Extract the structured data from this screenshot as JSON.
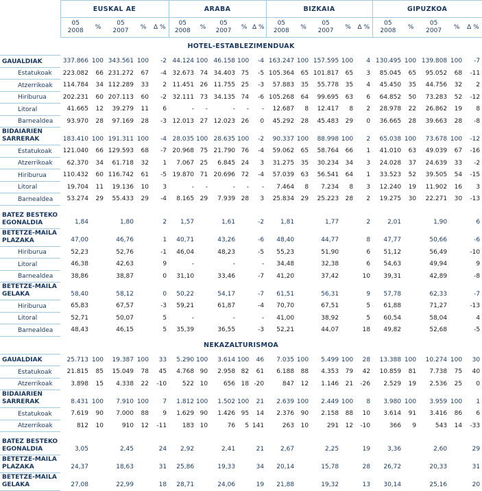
{
  "colors": {
    "text_navy": "#17375E",
    "text_black": "#1A1A1A",
    "border_blue": "#A3C7DF",
    "background": "#FFFFFF"
  },
  "table": {
    "groups": [
      "EUSKAL AE",
      "ARABA",
      "BIZKAIA",
      "GIPUZKOA"
    ],
    "sub_cols": [
      "05\n2008",
      "%",
      "05\n2007",
      "%",
      "Δ %"
    ],
    "sections": [
      {
        "title": "HOTEL-ESTABLEZIMENDUAK",
        "rows": [
          {
            "label": "GAUALDIAK",
            "style": "cat",
            "cells": [
              "337.866",
              "100",
              "343.561",
              "100",
              "-2",
              "44.124",
              "100",
              "46.158",
              "100",
              "-4",
              "163.247",
              "100",
              "157.595",
              "100",
              "4",
              "130.495",
              "100",
              "139.808",
              "100",
              "-7"
            ]
          },
          {
            "label": "Estatukoak",
            "style": "sub",
            "cells": [
              "223.082",
              "66",
              "231.272",
              "67",
              "-4",
              "32.673",
              "74",
              "34.403",
              "75",
              "-5",
              "105.364",
              "65",
              "101.817",
              "65",
              "3",
              "85.045",
              "65",
              "95.052",
              "68",
              "-11"
            ]
          },
          {
            "label": "Atzerrikoak",
            "style": "sub",
            "cells": [
              "114.784",
              "34",
              "112.289",
              "33",
              "2",
              "11.451",
              "26",
              "11.755",
              "25",
              "-3",
              "57.883",
              "35",
              "55.778",
              "35",
              "4",
              "45.450",
              "35",
              "44.756",
              "32",
              "2"
            ]
          },
          {
            "label": "Hiriburua",
            "style": "sub",
            "cells": [
              "202.231",
              "60",
              "207.113",
              "60",
              "-2",
              "32.111",
              "73",
              "34.135",
              "74",
              "-6",
              "105.268",
              "64",
              "99.695",
              "63",
              "6",
              "64.852",
              "50",
              "73.283",
              "52",
              "-12"
            ]
          },
          {
            "label": "Litoral",
            "style": "sub",
            "cells": [
              "41.665",
              "12",
              "39.279",
              "11",
              "6",
              "-",
              "-",
              "-",
              "-",
              "-",
              "12.687",
              "8",
              "12.417",
              "8",
              "2",
              "28.978",
              "22",
              "26.862",
              "19",
              "8"
            ]
          },
          {
            "label": "Barnealdea",
            "style": "sub",
            "cells": [
              "93.970",
              "28",
              "97.169",
              "28",
              "-3",
              "12.013",
              "27",
              "12.023",
              "26",
              "0",
              "45.292",
              "28",
              "45.483",
              "29",
              "0",
              "36.665",
              "28",
              "39.663",
              "28",
              "-8"
            ]
          },
          {
            "label": "BIDAIARIEN\nSARRERAK",
            "style": "cat",
            "cells": [
              "183.410",
              "100",
              "191.311",
              "100",
              "-4",
              "28.035",
              "100",
              "28.635",
              "100",
              "-2",
              "90.337",
              "100",
              "88.998",
              "100",
              "2",
              "65.038",
              "100",
              "73.678",
              "100",
              "-12"
            ]
          },
          {
            "label": "Estatukoak",
            "style": "sub",
            "cells": [
              "121.040",
              "66",
              "129.593",
              "68",
              "-7",
              "20.968",
              "75",
              "21.790",
              "76",
              "-4",
              "59.062",
              "65",
              "58.764",
              "66",
              "1",
              "41.010",
              "63",
              "49.039",
              "67",
              "-16"
            ]
          },
          {
            "label": "Atzerrikoak",
            "style": "sub",
            "cells": [
              "62.370",
              "34",
              "61.718",
              "32",
              "1",
              "7.067",
              "25",
              "6.845",
              "24",
              "3",
              "31.275",
              "35",
              "30.234",
              "34",
              "3",
              "24.028",
              "37",
              "24.639",
              "33",
              "-2"
            ]
          },
          {
            "label": "Hiriburua",
            "style": "sub",
            "cells": [
              "110.432",
              "60",
              "116.742",
              "61",
              "-5",
              "19.870",
              "71",
              "20.696",
              "72",
              "-4",
              "57.039",
              "63",
              "56.541",
              "64",
              "1",
              "33.523",
              "52",
              "39.505",
              "54",
              "-15"
            ]
          },
          {
            "label": "Litoral",
            "style": "sub",
            "cells": [
              "19.704",
              "11",
              "19.136",
              "10",
              "3",
              "-",
              "-",
              "-",
              "-",
              "-",
              "7.464",
              "8",
              "7.234",
              "8",
              "3",
              "12.240",
              "19",
              "11.902",
              "16",
              "3"
            ]
          },
          {
            "label": "Barnealdea",
            "style": "sub",
            "cells": [
              "53.274",
              "29",
              "55.433",
              "29",
              "-4",
              "8.165",
              "29",
              "7.939",
              "28",
              "3",
              "25.834",
              "29",
              "25.223",
              "28",
              "2",
              "19.275",
              "30",
              "22.271",
              "30",
              "-13"
            ]
          },
          {
            "label": "BATEZ BESTEKO\nEGONALDIA",
            "style": "cat",
            "gap_before": true,
            "cells": [
              "1,84",
              "",
              "1,80",
              "",
              "2",
              "1,57",
              "",
              "1,61",
              "",
              "-2",
              "1,81",
              "",
              "1,77",
              "",
              "2",
              "2,01",
              "",
              "1,90",
              "",
              "6"
            ]
          },
          {
            "label": "BETETZE-MAILA\nPLAZAKA",
            "style": "cat",
            "cells": [
              "47,00",
              "",
              "46,76",
              "",
              "1",
              "40,71",
              "",
              "43,26",
              "",
              "-6",
              "48,40",
              "",
              "44,77",
              "",
              "8",
              "47,77",
              "",
              "50,66",
              "",
              "-6"
            ]
          },
          {
            "label": "Hiriburua",
            "style": "sub",
            "cells": [
              "52,23",
              "",
              "52,76",
              "",
              "-1",
              "46,04",
              "",
              "48,23",
              "",
              "-5",
              "55,23",
              "",
              "51,90",
              "",
              "6",
              "51,12",
              "",
              "56,49",
              "",
              "-10"
            ]
          },
          {
            "label": "Litoral",
            "style": "sub",
            "cells": [
              "46,38",
              "",
              "42,63",
              "",
              "9",
              "-",
              "",
              "-",
              "",
              "-",
              "34,48",
              "",
              "32,38",
              "",
              "6",
              "54,63",
              "",
              "49,94",
              "",
              "9"
            ]
          },
          {
            "label": "Barnealdea",
            "style": "sub",
            "cells": [
              "38,86",
              "",
              "38,87",
              "",
              "0",
              "31,10",
              "",
              "33,46",
              "",
              "-7",
              "41,20",
              "",
              "37,42",
              "",
              "10",
              "39,31",
              "",
              "42,89",
              "",
              "-8"
            ]
          },
          {
            "label": "BETETZE-MAILA\nGELAKA",
            "style": "cat",
            "cells": [
              "58,40",
              "",
              "58,12",
              "",
              "0",
              "50,22",
              "",
              "54,17",
              "",
              "-7",
              "61,51",
              "",
              "56,31",
              "",
              "9",
              "57,78",
              "",
              "62,33",
              "",
              "-7"
            ]
          },
          {
            "label": "Hiriburua",
            "style": "sub",
            "cells": [
              "65,83",
              "",
              "67,57",
              "",
              "-3",
              "59,21",
              "",
              "61,87",
              "",
              "-4",
              "70,70",
              "",
              "67,51",
              "",
              "5",
              "61,88",
              "",
              "71,27",
              "",
              "-13"
            ]
          },
          {
            "label": "Litoral",
            "style": "sub",
            "cells": [
              "52,71",
              "",
              "50,07",
              "",
              "5",
              "-",
              "",
              "-",
              "",
              "-",
              "41,00",
              "",
              "38,92",
              "",
              "5",
              "60,54",
              "",
              "58,04",
              "",
              "4"
            ]
          },
          {
            "label": "Barnealdea",
            "style": "sub",
            "cells": [
              "48,43",
              "",
              "46,15",
              "",
              "5",
              "35,39",
              "",
              "36,55",
              "",
              "-3",
              "52,21",
              "",
              "44,07",
              "",
              "18",
              "49,82",
              "",
              "52,68",
              "",
              "-5"
            ]
          }
        ]
      },
      {
        "title": "NEKAZALTURISMOA",
        "rows": [
          {
            "label": "GAUALDIAK",
            "style": "cat",
            "cells": [
              "25.713",
              "100",
              "19.387",
              "100",
              "33",
              "5.290",
              "100",
              "3.614",
              "100",
              "46",
              "7.035",
              "100",
              "5.499",
              "100",
              "28",
              "13.388",
              "100",
              "10.274",
              "100",
              "30"
            ]
          },
          {
            "label": "Estatukoak",
            "style": "sub",
            "cells": [
              "21.815",
              "85",
              "15.049",
              "78",
              "45",
              "4.768",
              "90",
              "2.958",
              "82",
              "61",
              "6.188",
              "88",
              "4.353",
              "79",
              "42",
              "10.859",
              "81",
              "7.738",
              "75",
              "40"
            ]
          },
          {
            "label": "Atzerrikoak",
            "style": "sub",
            "cells": [
              "3.898",
              "15",
              "4.338",
              "22",
              "-10",
              "522",
              "10",
              "656",
              "18",
              "-20",
              "847",
              "12",
              "1.146",
              "21",
              "-26",
              "2.529",
              "19",
              "2.536",
              "25",
              "0"
            ]
          },
          {
            "label": "BIDAIARIEN\nSARRERAK",
            "style": "cat",
            "cells": [
              "8.431",
              "100",
              "7.910",
              "100",
              "7",
              "1.812",
              "100",
              "1.502",
              "100",
              "21",
              "2.639",
              "100",
              "2.449",
              "100",
              "8",
              "3.980",
              "100",
              "3.959",
              "100",
              "1"
            ]
          },
          {
            "label": "Estatukoak",
            "style": "sub",
            "cells": [
              "7.619",
              "90",
              "7.000",
              "88",
              "9",
              "1.629",
              "90",
              "1.426",
              "95",
              "14",
              "2.376",
              "90",
              "2.158",
              "88",
              "10",
              "3.614",
              "91",
              "3.416",
              "86",
              "6"
            ]
          },
          {
            "label": "Atzerrikoak",
            "style": "sub",
            "cells": [
              "812",
              "10",
              "910",
              "12",
              "-11",
              "183",
              "10",
              "76",
              "5",
              "141",
              "263",
              "10",
              "291",
              "12",
              "-10",
              "366",
              "9",
              "543",
              "14",
              "-33"
            ]
          },
          {
            "label": "BATEZ BESTEKO\nEGONALDIA",
            "style": "cat",
            "gap_before": true,
            "cells": [
              "3,05",
              "",
              "2,45",
              "",
              "24",
              "2,92",
              "",
              "2,41",
              "",
              "21",
              "2,67",
              "",
              "2,25",
              "",
              "19",
              "3,36",
              "",
              "2,60",
              "",
              "29"
            ]
          },
          {
            "label": "BETETZE-MAILA\nPLAZAKA",
            "style": "cat",
            "cells": [
              "24,37",
              "",
              "18,63",
              "",
              "31",
              "25,86",
              "",
              "19,33",
              "",
              "34",
              "20,14",
              "",
              "15,78",
              "",
              "28",
              "26,72",
              "",
              "20,33",
              "",
              "31"
            ]
          },
          {
            "label": "BETETZE-MAILA\nGELAKA",
            "style": "cat",
            "cells": [
              "27,08",
              "",
              "22,99",
              "",
              "18",
              "28,71",
              "",
              "24,06",
              "",
              "19",
              "21,88",
              "",
              "19,32",
              "",
              "13",
              "30,14",
              "",
              "25,16",
              "",
              "20"
            ]
          }
        ]
      }
    ]
  }
}
